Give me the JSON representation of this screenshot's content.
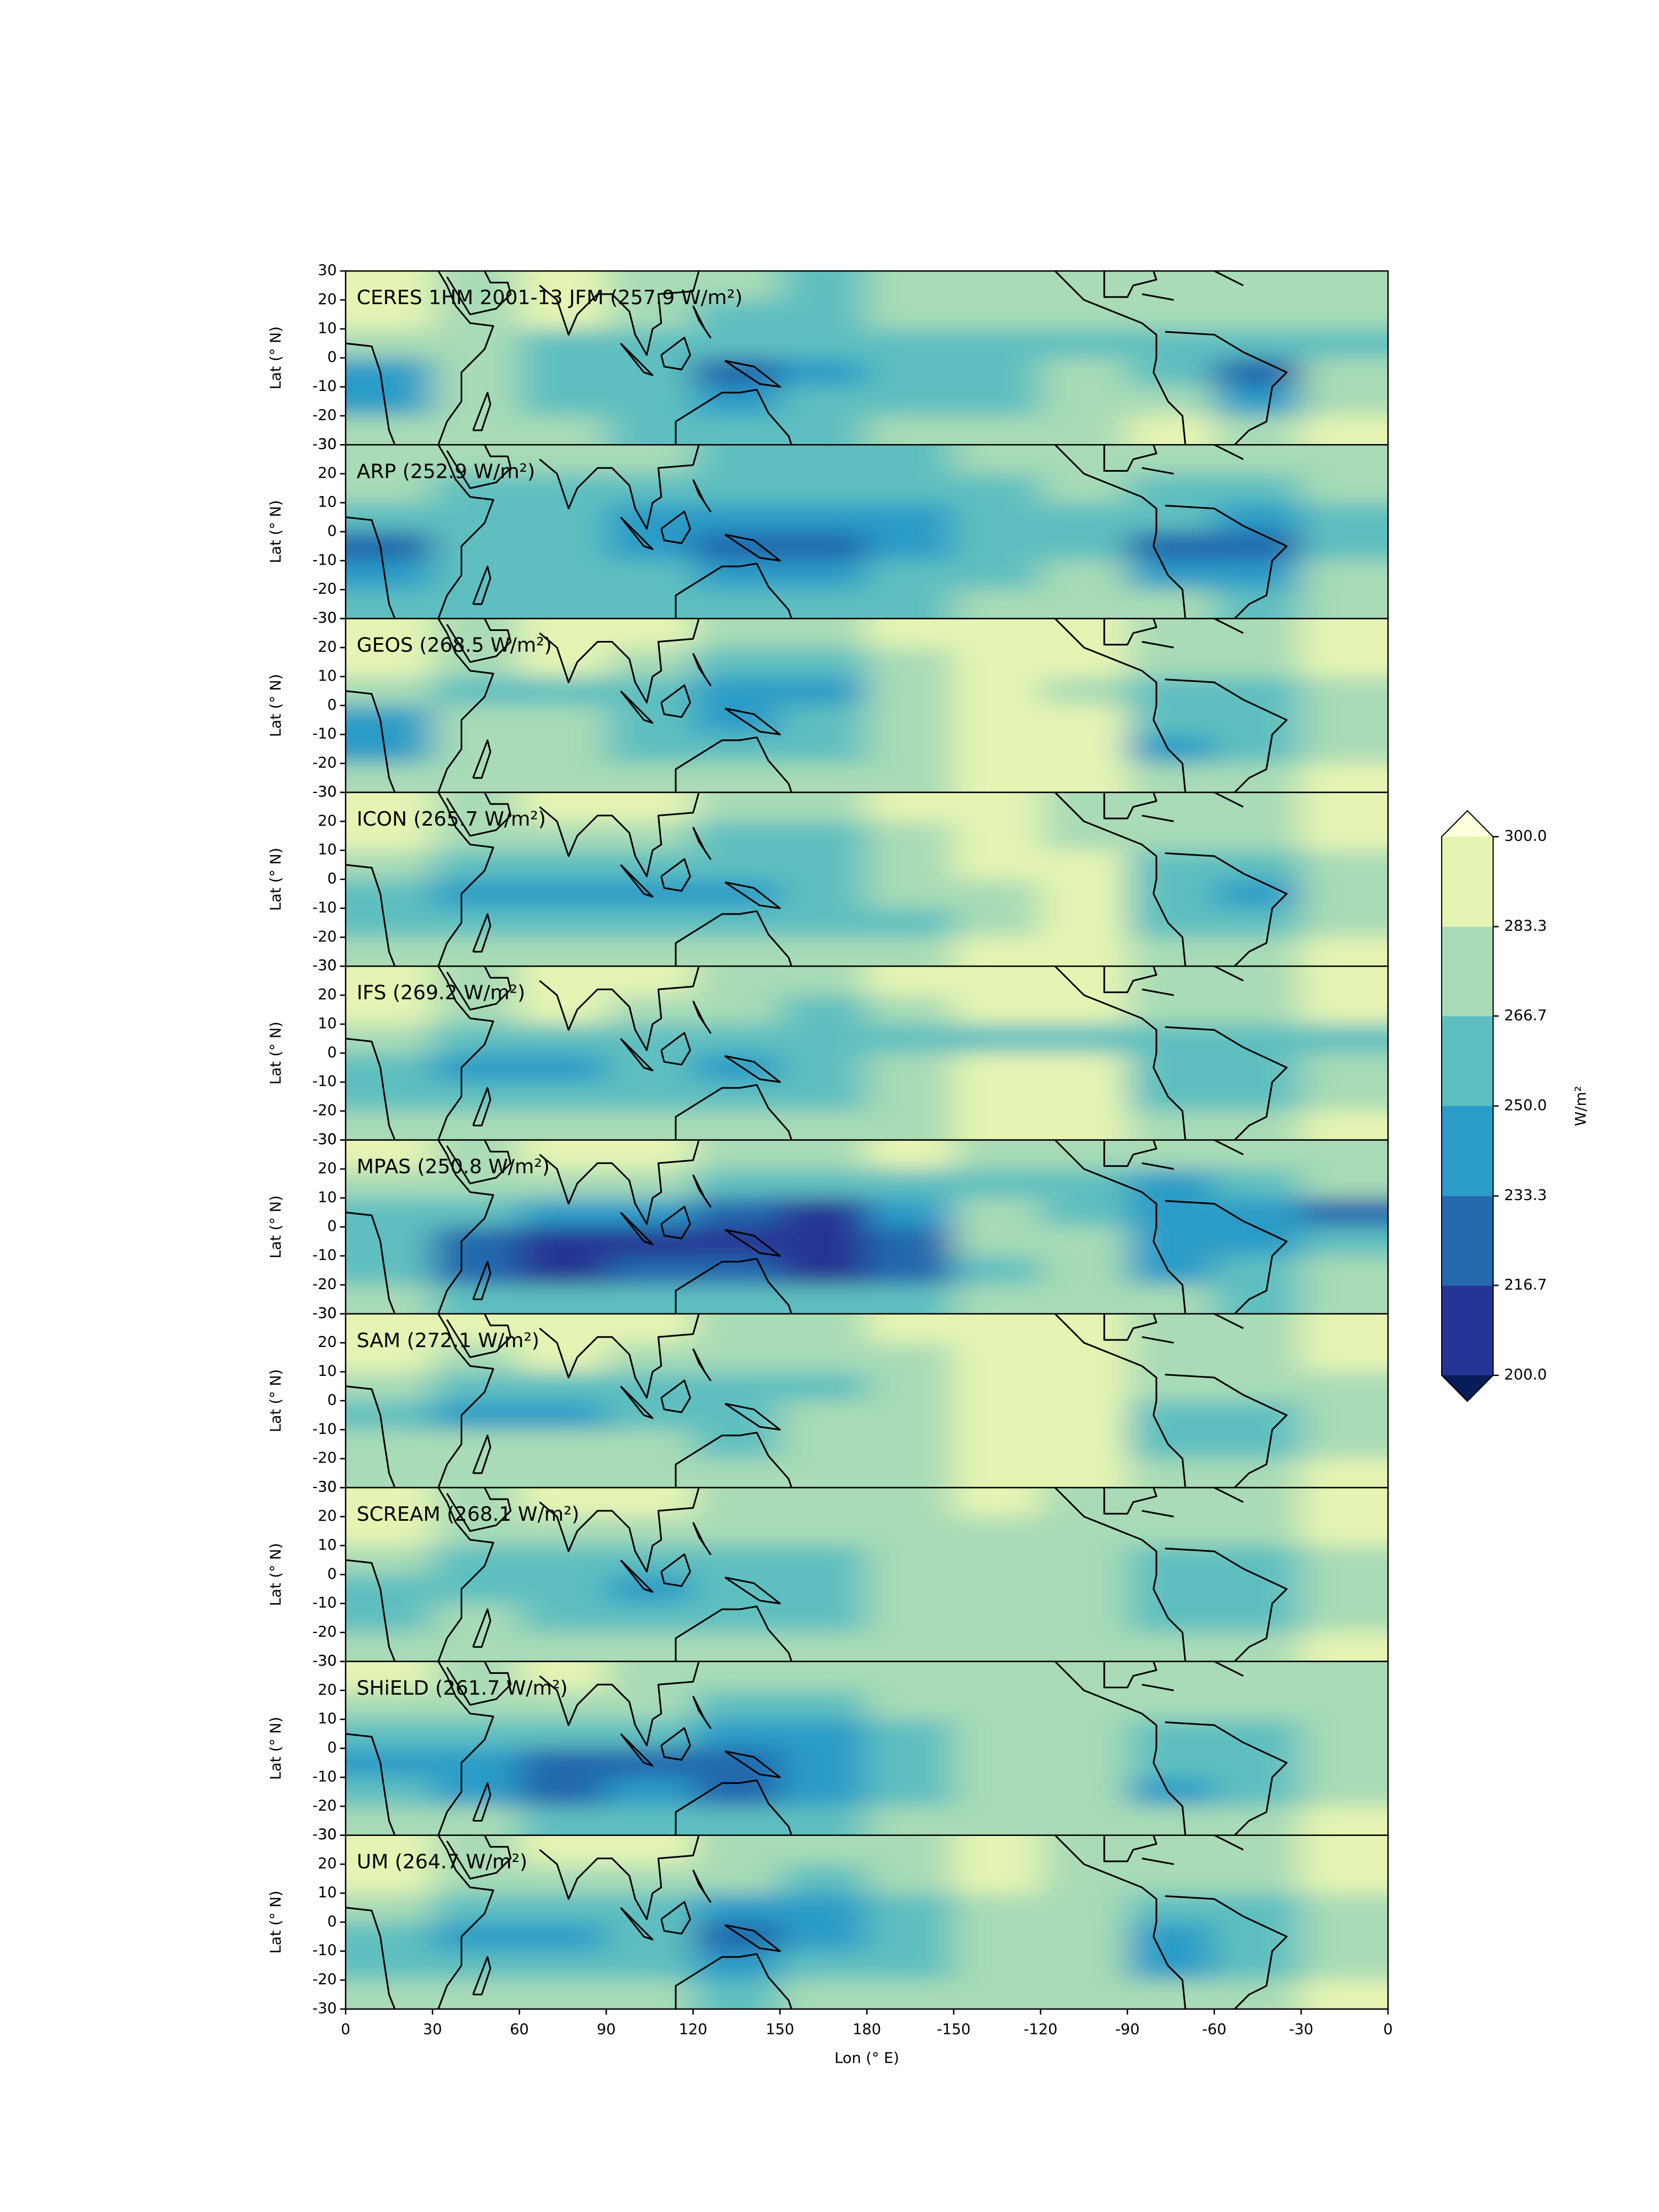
{
  "chart_data": {
    "type": "contour",
    "xlabel": "Lon (° E)",
    "ylabel": "Lat (° N)",
    "colorbar_label": "W/m²",
    "xlim": [
      0,
      360
    ],
    "xticks": [
      0,
      30,
      60,
      90,
      120,
      150,
      180,
      {
        "value": 210,
        "label": "-150"
      },
      {
        "value": 240,
        "label": "-120"
      },
      {
        "value": 270,
        "label": "-90"
      },
      {
        "value": 300,
        "label": "-60"
      },
      {
        "value": 330,
        "label": "-30"
      },
      {
        "value": 360,
        "label": "0"
      }
    ],
    "ylim": [
      -30,
      30
    ],
    "yticks": [
      -30,
      -20,
      -10,
      0,
      10,
      20,
      30
    ],
    "lon": [
      15,
      45,
      75,
      105,
      135,
      165,
      195,
      225,
      255,
      285,
      315,
      345
    ],
    "lat": [
      25,
      15,
      5,
      -5,
      -15,
      -25
    ],
    "levels": [
      {
        "value": 200,
        "label": "200.0"
      },
      216.7,
      233.3,
      {
        "value": 250,
        "label": "250.0"
      },
      266.7,
      283.3,
      {
        "value": 300,
        "label": "300.0"
      }
    ],
    "colors": [
      "#253494",
      "#2468ad",
      "#2a9cc7",
      "#5ebfc0",
      "#a8dbb6",
      "#e6f4b3"
    ],
    "under_color": "#081d58",
    "over_color": "#ffffdd",
    "panels": [
      {
        "title": "CERES 1HM 2001-13 JFM (257.9 W/m²)",
        "values": [
          [
            285,
            275,
            290,
            280,
            270,
            265,
            268,
            270,
            275,
            280,
            275,
            280
          ],
          [
            285,
            280,
            290,
            280,
            265,
            265,
            268,
            275,
            280,
            278,
            275,
            280
          ],
          [
            270,
            275,
            265,
            260,
            250,
            255,
            255,
            258,
            262,
            260,
            255,
            265
          ],
          [
            235,
            270,
            265,
            250,
            230,
            245,
            255,
            265,
            270,
            255,
            230,
            270
          ],
          [
            240,
            275,
            260,
            255,
            240,
            250,
            260,
            265,
            275,
            270,
            235,
            270
          ],
          [
            275,
            275,
            270,
            260,
            260,
            265,
            270,
            275,
            280,
            285,
            275,
            285
          ]
        ]
      },
      {
        "title": "ARP (252.9 W/m²)",
        "values": [
          [
            280,
            270,
            275,
            275,
            265,
            260,
            265,
            270,
            275,
            272,
            270,
            278
          ],
          [
            275,
            265,
            265,
            265,
            255,
            250,
            255,
            265,
            275,
            265,
            262,
            275
          ],
          [
            255,
            255,
            250,
            245,
            240,
            240,
            245,
            260,
            265,
            250,
            245,
            262
          ],
          [
            230,
            255,
            250,
            240,
            225,
            230,
            240,
            260,
            265,
            230,
            225,
            265
          ],
          [
            240,
            260,
            255,
            250,
            235,
            245,
            255,
            265,
            270,
            240,
            235,
            270
          ],
          [
            260,
            265,
            260,
            255,
            250,
            255,
            265,
            270,
            275,
            270,
            260,
            275
          ]
        ]
      },
      {
        "title": "GEOS (268.5 W/m²)",
        "values": [
          [
            285,
            280,
            290,
            285,
            275,
            275,
            285,
            290,
            285,
            280,
            280,
            285
          ],
          [
            285,
            275,
            285,
            275,
            265,
            265,
            280,
            290,
            285,
            280,
            278,
            285
          ],
          [
            270,
            265,
            265,
            260,
            245,
            245,
            275,
            285,
            282,
            265,
            260,
            280
          ],
          [
            240,
            275,
            270,
            262,
            245,
            250,
            270,
            285,
            285,
            255,
            250,
            280
          ],
          [
            235,
            280,
            270,
            262,
            255,
            260,
            275,
            285,
            285,
            245,
            250,
            282
          ],
          [
            270,
            278,
            272,
            270,
            270,
            268,
            280,
            285,
            285,
            275,
            270,
            285
          ]
        ]
      },
      {
        "title": "ICON (265.7 W/m²)",
        "values": [
          [
            285,
            280,
            290,
            285,
            280,
            275,
            285,
            285,
            280,
            275,
            275,
            285
          ],
          [
            285,
            275,
            282,
            275,
            265,
            260,
            275,
            285,
            282,
            275,
            275,
            285
          ],
          [
            270,
            265,
            260,
            262,
            255,
            255,
            270,
            285,
            285,
            262,
            260,
            280
          ],
          [
            255,
            245,
            240,
            245,
            240,
            250,
            268,
            282,
            285,
            250,
            245,
            280
          ],
          [
            260,
            265,
            262,
            262,
            258,
            262,
            265,
            280,
            285,
            250,
            250,
            282
          ],
          [
            275,
            275,
            275,
            272,
            270,
            275,
            280,
            285,
            285,
            275,
            270,
            285
          ]
        ]
      },
      {
        "title": "IFS (269.2 W/m²)",
        "values": [
          [
            285,
            280,
            290,
            285,
            280,
            275,
            285,
            290,
            285,
            280,
            280,
            285
          ],
          [
            285,
            275,
            285,
            275,
            270,
            265,
            280,
            288,
            285,
            280,
            278,
            285
          ],
          [
            270,
            265,
            265,
            262,
            258,
            260,
            260,
            262,
            262,
            255,
            250,
            262
          ],
          [
            255,
            245,
            245,
            250,
            245,
            250,
            275,
            288,
            285,
            250,
            255,
            280
          ],
          [
            262,
            265,
            262,
            262,
            250,
            262,
            272,
            285,
            285,
            255,
            258,
            282
          ],
          [
            278,
            278,
            275,
            275,
            272,
            275,
            282,
            285,
            285,
            278,
            275,
            285
          ]
        ]
      },
      {
        "title": "MPAS (250.8 W/m²)",
        "values": [
          [
            285,
            280,
            290,
            285,
            275,
            275,
            285,
            282,
            280,
            275,
            275,
            280
          ],
          [
            280,
            270,
            275,
            272,
            262,
            258,
            262,
            265,
            262,
            245,
            262,
            270
          ],
          [
            260,
            250,
            245,
            240,
            220,
            210,
            245,
            268,
            265,
            240,
            235,
            225
          ],
          [
            255,
            220,
            210,
            215,
            205,
            205,
            230,
            268,
            270,
            245,
            245,
            265
          ],
          [
            255,
            225,
            215,
            225,
            220,
            215,
            225,
            265,
            270,
            245,
            250,
            275
          ],
          [
            270,
            265,
            260,
            262,
            262,
            258,
            262,
            272,
            280,
            270,
            265,
            280
          ]
        ]
      },
      {
        "title": "SAM (272.1 W/m²)",
        "values": [
          [
            290,
            285,
            292,
            288,
            282,
            280,
            288,
            290,
            285,
            282,
            282,
            288
          ],
          [
            290,
            280,
            288,
            280,
            272,
            270,
            282,
            290,
            288,
            275,
            280,
            288
          ],
          [
            275,
            255,
            255,
            265,
            265,
            265,
            278,
            288,
            285,
            268,
            268,
            282
          ],
          [
            262,
            245,
            240,
            260,
            260,
            268,
            280,
            285,
            285,
            262,
            258,
            282
          ],
          [
            268,
            270,
            268,
            268,
            265,
            270,
            280,
            285,
            285,
            258,
            258,
            282
          ],
          [
            280,
            280,
            278,
            275,
            275,
            278,
            282,
            285,
            285,
            278,
            275,
            285
          ]
        ]
      },
      {
        "title": "SCREAM (268.1 W/m²)",
        "values": [
          [
            285,
            282,
            290,
            285,
            280,
            278,
            282,
            285,
            280,
            280,
            278,
            285
          ],
          [
            285,
            275,
            282,
            275,
            272,
            270,
            275,
            280,
            280,
            278,
            275,
            285
          ],
          [
            275,
            265,
            265,
            262,
            262,
            265,
            272,
            278,
            278,
            265,
            262,
            280
          ],
          [
            255,
            258,
            258,
            245,
            255,
            262,
            275,
            278,
            278,
            255,
            255,
            280
          ],
          [
            262,
            268,
            262,
            258,
            262,
            265,
            275,
            278,
            280,
            255,
            258,
            282
          ],
          [
            278,
            278,
            275,
            272,
            272,
            275,
            280,
            282,
            282,
            278,
            272,
            285
          ]
        ]
      },
      {
        "title": "SHiELD (261.7 W/m²)",
        "values": [
          [
            285,
            278,
            288,
            282,
            272,
            272,
            282,
            280,
            278,
            275,
            275,
            282
          ],
          [
            282,
            272,
            278,
            272,
            262,
            260,
            270,
            275,
            275,
            272,
            272,
            282
          ],
          [
            265,
            255,
            252,
            252,
            245,
            245,
            262,
            270,
            275,
            260,
            258,
            275
          ],
          [
            245,
            235,
            225,
            230,
            220,
            235,
            262,
            275,
            280,
            250,
            250,
            275
          ],
          [
            250,
            245,
            230,
            235,
            225,
            245,
            262,
            272,
            280,
            245,
            255,
            280
          ],
          [
            268,
            270,
            265,
            262,
            262,
            262,
            270,
            278,
            280,
            275,
            268,
            285
          ]
        ]
      },
      {
        "title": "UM (264.7 W/m²)",
        "values": [
          [
            285,
            280,
            288,
            285,
            278,
            275,
            282,
            288,
            282,
            280,
            278,
            285
          ],
          [
            285,
            275,
            280,
            275,
            268,
            265,
            275,
            285,
            282,
            275,
            275,
            285
          ],
          [
            270,
            262,
            258,
            258,
            245,
            240,
            265,
            280,
            280,
            262,
            260,
            280
          ],
          [
            250,
            245,
            245,
            250,
            225,
            235,
            265,
            282,
            282,
            245,
            255,
            280
          ],
          [
            250,
            260,
            262,
            262,
            245,
            255,
            265,
            280,
            282,
            235,
            255,
            282
          ],
          [
            272,
            275,
            272,
            270,
            265,
            268,
            275,
            282,
            282,
            275,
            270,
            285
          ]
        ]
      }
    ]
  }
}
